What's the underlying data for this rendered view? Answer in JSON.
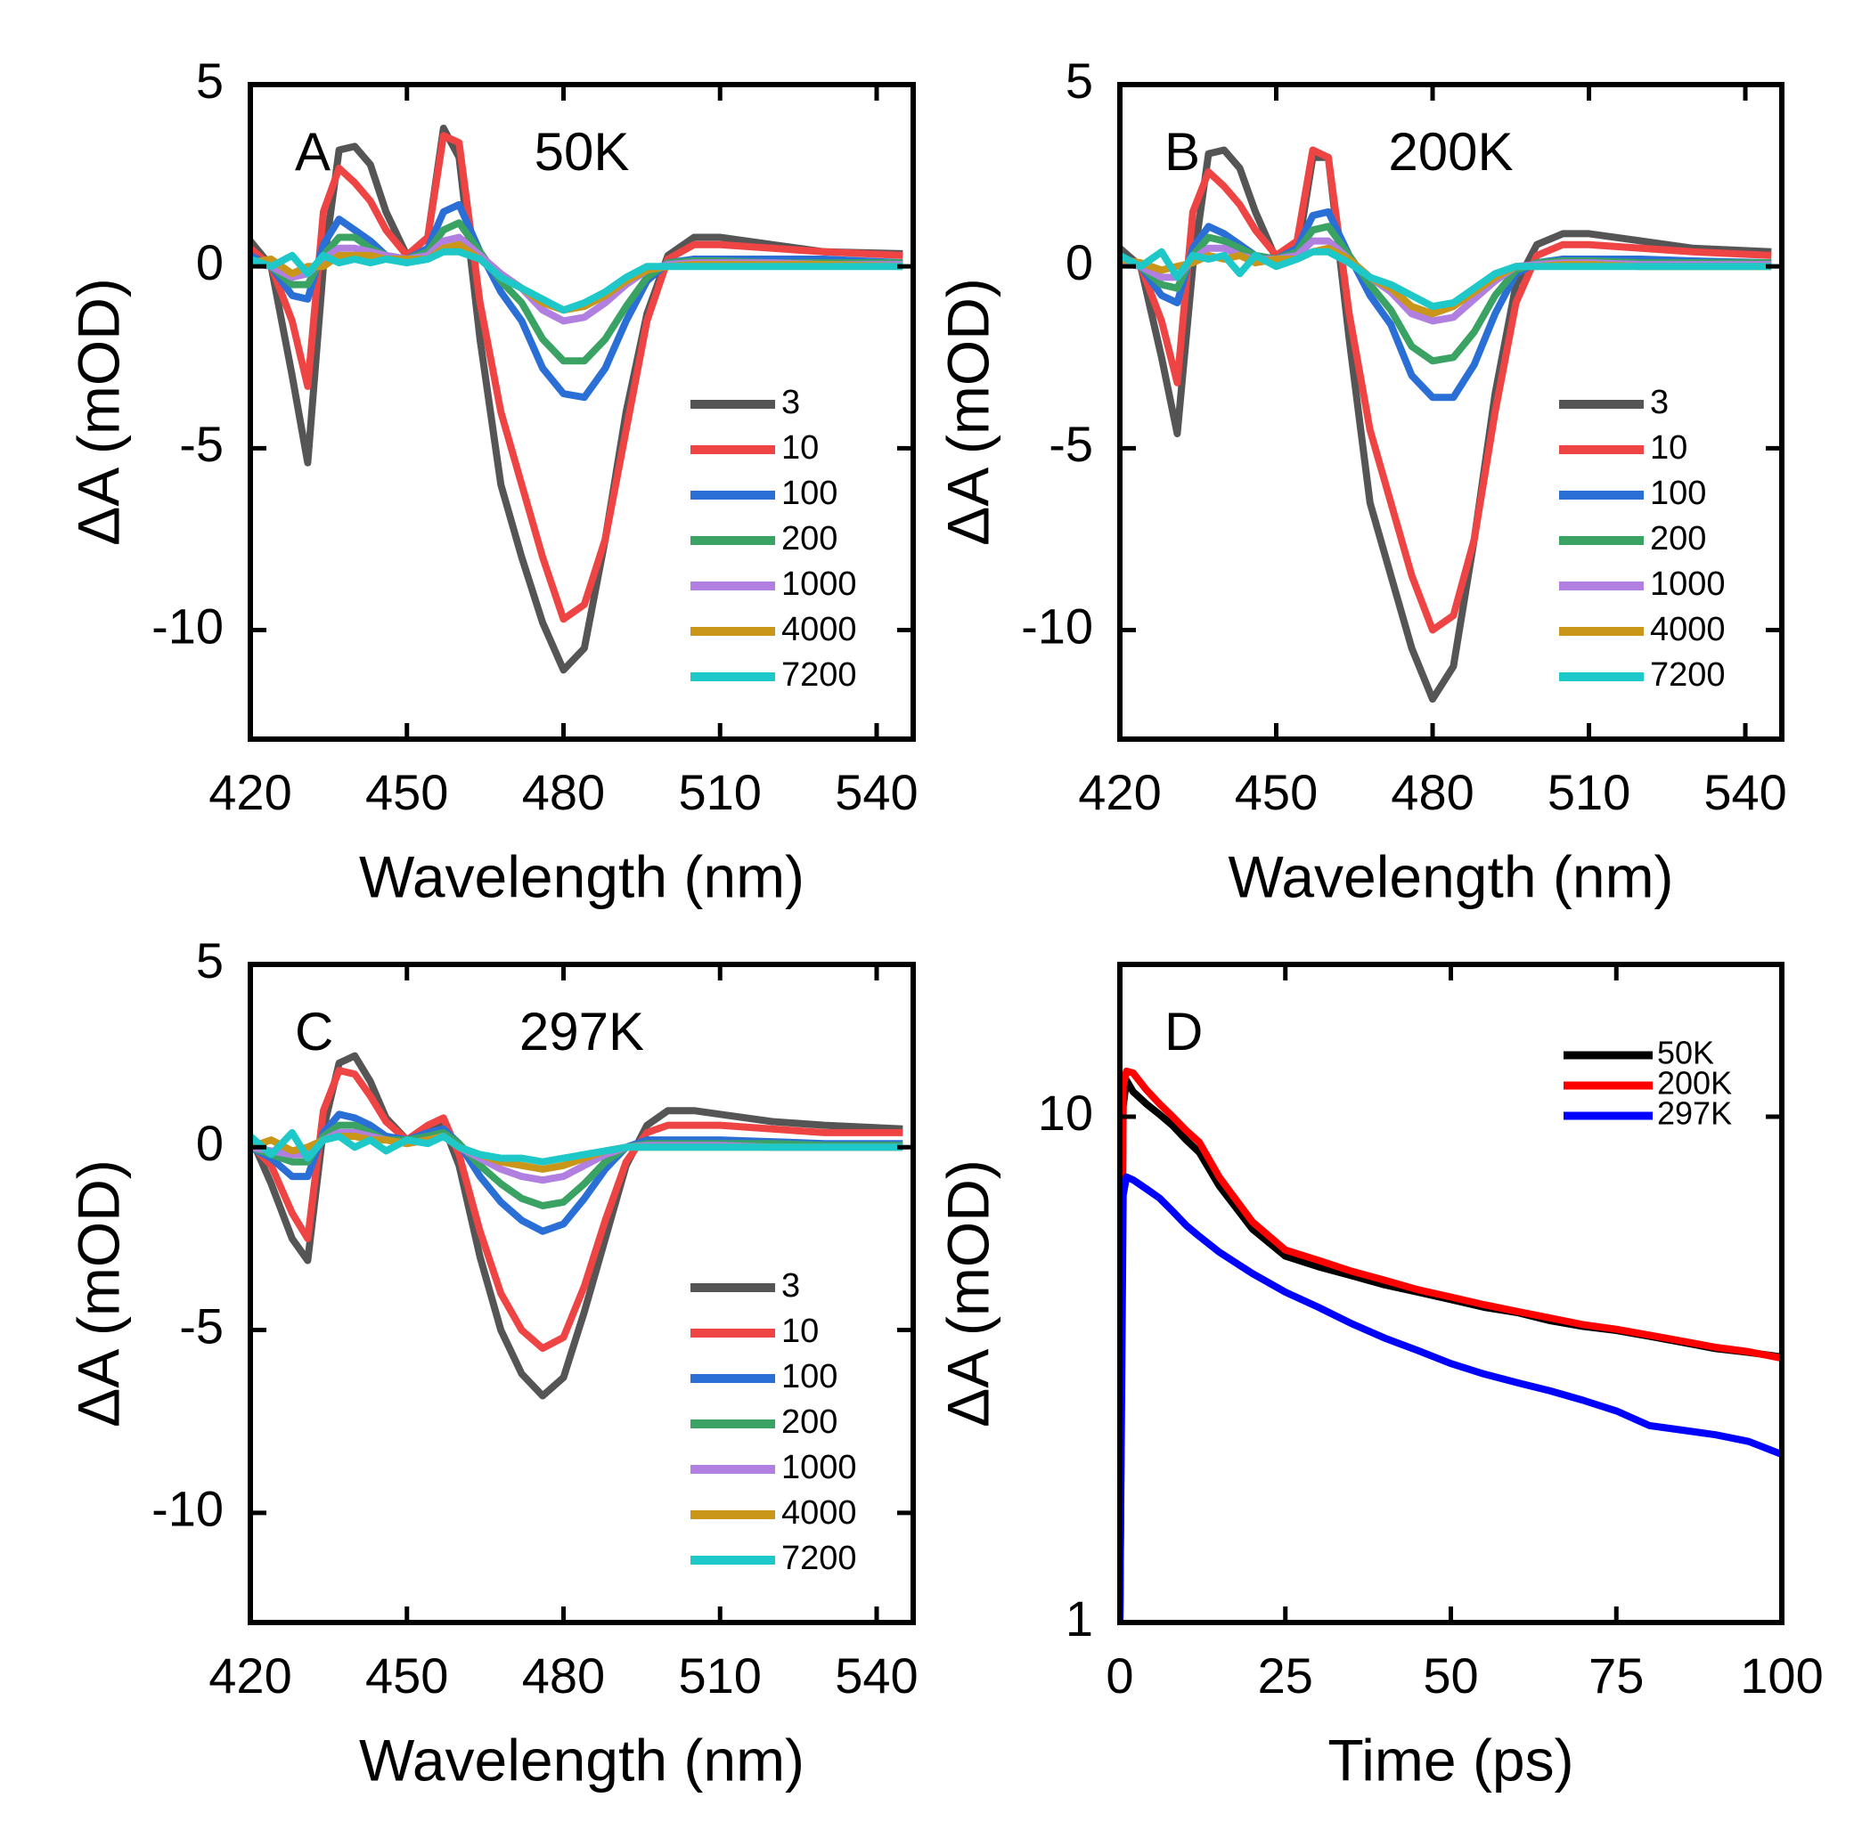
{
  "chart_data": [
    {
      "type": "line",
      "panel_label": "A",
      "annotation": "50K",
      "x_label": "Wavelength (nm)",
      "y_label": "ΔA (mOD)",
      "legend": "lower right",
      "xlim": [
        420,
        547
      ],
      "xticks": [
        420,
        450,
        480,
        510,
        540
      ],
      "ylim": [
        -13,
        5
      ],
      "yticks": [
        -10,
        -5,
        0,
        5
      ],
      "x": [
        420,
        424,
        428,
        431,
        434,
        437,
        440,
        443,
        446,
        450,
        454,
        457,
        460,
        464,
        468,
        472,
        476,
        480,
        484,
        488,
        492,
        496,
        500,
        505,
        510,
        520,
        530,
        545
      ],
      "series": [
        {
          "name": "3",
          "color": "#555555",
          "values": [
            0.7,
            0,
            -3,
            -5.4,
            0,
            3.2,
            3.3,
            2.8,
            1.5,
            0.3,
            0.8,
            3.8,
            3.0,
            -2,
            -6,
            -8,
            -9.8,
            -11.1,
            -10.5,
            -7.5,
            -4,
            -1.3,
            0.3,
            0.8,
            0.8,
            0.6,
            0.4,
            0.35
          ]
        },
        {
          "name": "10",
          "color": "#ee4444",
          "values": [
            0.5,
            0,
            -1.5,
            -3.3,
            1.5,
            2.7,
            2.3,
            1.8,
            1.0,
            0.3,
            0.8,
            3.6,
            3.4,
            -1,
            -4,
            -6,
            -8,
            -9.7,
            -9.3,
            -7.5,
            -4.5,
            -1.5,
            0.2,
            0.6,
            0.6,
            0.5,
            0.4,
            0.3
          ]
        },
        {
          "name": "100",
          "color": "#2a6fd6",
          "values": [
            0.3,
            0,
            -0.8,
            -0.9,
            0.6,
            1.3,
            1.0,
            0.7,
            0.3,
            0.2,
            0.5,
            1.5,
            1.7,
            0.4,
            -0.7,
            -1.5,
            -2.8,
            -3.5,
            -3.6,
            -2.8,
            -1.5,
            -0.4,
            0.1,
            0.2,
            0.2,
            0.2,
            0.2,
            0.1
          ]
        },
        {
          "name": "200",
          "color": "#3aa364",
          "values": [
            0.2,
            0,
            -0.5,
            -0.5,
            0.3,
            0.8,
            0.8,
            0.5,
            0.3,
            0.2,
            0.4,
            1.0,
            1.2,
            0.4,
            -0.4,
            -1.0,
            -2.0,
            -2.6,
            -2.6,
            -2.0,
            -1.1,
            -0.3,
            0.1,
            0.15,
            0.15,
            0.1,
            0.1,
            0.1
          ]
        },
        {
          "name": "1000",
          "color": "#b07fe0",
          "values": [
            0.1,
            0,
            -0.3,
            -0.2,
            0.2,
            0.5,
            0.5,
            0.4,
            0.3,
            0.2,
            0.3,
            0.7,
            0.8,
            0.3,
            -0.2,
            -0.6,
            -1.2,
            -1.5,
            -1.4,
            -1.0,
            -0.5,
            -0.1,
            0.05,
            0.1,
            0.1,
            0.1,
            0.05,
            0.05
          ]
        },
        {
          "name": "4000",
          "color": "#c9961a",
          "values": [
            0.1,
            0.2,
            -0.2,
            0,
            0,
            0.3,
            0.3,
            0.3,
            0.2,
            0.2,
            0.2,
            0.5,
            0.6,
            0.2,
            -0.3,
            -0.6,
            -1.0,
            -1.2,
            -1.1,
            -0.8,
            -0.4,
            -0.1,
            0,
            0.05,
            0.05,
            0.05,
            0.05,
            0
          ]
        },
        {
          "name": "7200",
          "color": "#1ec8c8",
          "values": [
            0.2,
            0,
            0.3,
            -0.2,
            0.3,
            0.1,
            0.2,
            0.1,
            0.2,
            0.1,
            0.2,
            0.4,
            0.4,
            0.2,
            -0.3,
            -0.6,
            -0.9,
            -1.2,
            -1.0,
            -0.7,
            -0.3,
            0,
            0,
            0,
            0,
            0,
            0,
            0
          ]
        }
      ]
    },
    {
      "type": "line",
      "panel_label": "B",
      "annotation": "200K",
      "x_label": "Wavelength (nm)",
      "y_label": "ΔA (mOD)",
      "legend": "lower right",
      "xlim": [
        420,
        547
      ],
      "xticks": [
        420,
        450,
        480,
        510,
        540
      ],
      "ylim": [
        -13,
        5
      ],
      "yticks": [
        -10,
        -5,
        0,
        5
      ],
      "x": [
        420,
        424,
        428,
        431,
        434,
        437,
        440,
        443,
        446,
        450,
        454,
        457,
        460,
        464,
        468,
        472,
        476,
        480,
        484,
        488,
        492,
        496,
        500,
        505,
        510,
        520,
        530,
        545
      ],
      "series": [
        {
          "name": "3",
          "color": "#555555",
          "values": [
            0.5,
            0,
            -2.5,
            -4.6,
            0,
            3.1,
            3.2,
            2.7,
            1.5,
            0.2,
            0.3,
            3.0,
            3.0,
            -2,
            -6.5,
            -8.5,
            -10.5,
            -11.9,
            -11,
            -7.5,
            -3.5,
            -0.5,
            0.6,
            0.9,
            0.9,
            0.7,
            0.5,
            0.4
          ]
        },
        {
          "name": "10",
          "color": "#ee4444",
          "values": [
            0.3,
            0,
            -1.5,
            -3.2,
            1.5,
            2.6,
            2.2,
            1.7,
            1.0,
            0.3,
            0.7,
            3.2,
            3.0,
            -1.3,
            -4.5,
            -6.5,
            -8.5,
            -10,
            -9.6,
            -7.5,
            -4,
            -1,
            0.3,
            0.6,
            0.6,
            0.5,
            0.4,
            0.3
          ]
        },
        {
          "name": "100",
          "color": "#2a6fd6",
          "values": [
            0.3,
            0,
            -0.8,
            -1.0,
            0.5,
            1.1,
            0.9,
            0.6,
            0.3,
            0.2,
            0.5,
            1.4,
            1.5,
            0.3,
            -0.8,
            -1.6,
            -3.0,
            -3.6,
            -3.6,
            -2.7,
            -1.3,
            -0.2,
            0.1,
            0.2,
            0.2,
            0.2,
            0.15,
            0.1
          ]
        },
        {
          "name": "200",
          "color": "#3aa364",
          "values": [
            0.2,
            0,
            -0.5,
            -0.6,
            0.3,
            0.8,
            0.7,
            0.5,
            0.3,
            0.2,
            0.4,
            1.0,
            1.1,
            0.3,
            -0.5,
            -1.2,
            -2.2,
            -2.6,
            -2.5,
            -1.8,
            -0.8,
            -0.1,
            0.1,
            0.15,
            0.15,
            0.1,
            0.1,
            0.1
          ]
        },
        {
          "name": "1000",
          "color": "#b07fe0",
          "values": [
            0.1,
            0,
            -0.3,
            -0.3,
            0.2,
            0.5,
            0.5,
            0.3,
            0.2,
            0.2,
            0.3,
            0.7,
            0.7,
            0.2,
            -0.3,
            -0.7,
            -1.3,
            -1.5,
            -1.4,
            -0.9,
            -0.4,
            0,
            0.05,
            0.1,
            0.1,
            0.05,
            0.05,
            0.05
          ]
        },
        {
          "name": "4000",
          "color": "#c9961a",
          "values": [
            0.2,
            0.1,
            -0.1,
            0,
            0.1,
            0.3,
            0.2,
            0.3,
            0.1,
            0.2,
            0.2,
            0.4,
            0.5,
            0.2,
            -0.3,
            -0.6,
            -1.1,
            -1.3,
            -1.1,
            -0.7,
            -0.3,
            0,
            0,
            0.05,
            0.05,
            0,
            0,
            0
          ]
        },
        {
          "name": "7200",
          "color": "#1ec8c8",
          "values": [
            0.3,
            0,
            0.4,
            -0.3,
            0.3,
            0.2,
            0.3,
            -0.2,
            0.3,
            0,
            0.2,
            0.4,
            0.4,
            0.1,
            -0.3,
            -0.5,
            -0.8,
            -1.1,
            -1.0,
            -0.6,
            -0.2,
            0,
            0,
            0,
            0,
            0,
            0,
            0
          ]
        }
      ]
    },
    {
      "type": "line",
      "panel_label": "C",
      "annotation": "297K",
      "x_label": "Wavelength (nm)",
      "y_label": "ΔA (mOD)",
      "legend": "lower right",
      "xlim": [
        420,
        547
      ],
      "xticks": [
        420,
        450,
        480,
        510,
        540
      ],
      "ylim": [
        -13,
        5
      ],
      "yticks": [
        -10,
        -5,
        0,
        5
      ],
      "x": [
        420,
        424,
        428,
        431,
        434,
        437,
        440,
        443,
        446,
        450,
        454,
        457,
        460,
        464,
        468,
        472,
        476,
        480,
        484,
        488,
        492,
        496,
        500,
        505,
        510,
        520,
        530,
        545
      ],
      "series": [
        {
          "name": "3",
          "color": "#555555",
          "values": [
            0.3,
            -1,
            -2.5,
            -3.1,
            0.5,
            2.3,
            2.5,
            1.8,
            0.8,
            0.2,
            0.5,
            0.6,
            -0.5,
            -3,
            -5,
            -6.2,
            -6.8,
            -6.3,
            -4.5,
            -2.5,
            -0.5,
            0.6,
            1.0,
            1.0,
            0.9,
            0.7,
            0.6,
            0.5
          ]
        },
        {
          "name": "10",
          "color": "#ee4444",
          "values": [
            0.1,
            -0.5,
            -1.8,
            -2.5,
            1.0,
            2.1,
            2.0,
            1.4,
            0.7,
            0.2,
            0.6,
            0.8,
            -0.2,
            -2.3,
            -4,
            -5,
            -5.5,
            -5.2,
            -3.8,
            -2.0,
            -0.4,
            0.4,
            0.6,
            0.6,
            0.6,
            0.5,
            0.4,
            0.4
          ]
        },
        {
          "name": "100",
          "color": "#2a6fd6",
          "values": [
            0,
            -0.3,
            -0.8,
            -0.8,
            0.4,
            0.9,
            0.8,
            0.6,
            0.3,
            0.2,
            0.4,
            0.5,
            0.1,
            -0.8,
            -1.5,
            -2.0,
            -2.3,
            -2.1,
            -1.4,
            -0.6,
            0,
            0.2,
            0.2,
            0.2,
            0.2,
            0.15,
            0.1,
            0.1
          ]
        },
        {
          "name": "200",
          "color": "#3aa364",
          "values": [
            0,
            -0.2,
            -0.4,
            -0.4,
            0.3,
            0.6,
            0.6,
            0.4,
            0.2,
            0.2,
            0.3,
            0.4,
            0.1,
            -0.5,
            -1.0,
            -1.4,
            -1.6,
            -1.5,
            -1.0,
            -0.4,
            0,
            0.1,
            0.1,
            0.1,
            0.1,
            0.1,
            0.05,
            0.05
          ]
        },
        {
          "name": "1000",
          "color": "#b07fe0",
          "values": [
            0,
            -0.1,
            -0.2,
            -0.2,
            0.2,
            0.4,
            0.4,
            0.3,
            0.2,
            0.1,
            0.2,
            0.3,
            0,
            -0.3,
            -0.6,
            -0.8,
            -0.9,
            -0.8,
            -0.5,
            -0.2,
            0,
            0.05,
            0.05,
            0.05,
            0.05,
            0,
            0,
            0
          ]
        },
        {
          "name": "4000",
          "color": "#c9961a",
          "values": [
            0,
            0.2,
            -0.1,
            0,
            0.2,
            0.3,
            0.3,
            0.2,
            0.2,
            0.1,
            0.2,
            0.3,
            0,
            -0.2,
            -0.4,
            -0.5,
            -0.6,
            -0.5,
            -0.3,
            -0.1,
            0,
            0,
            0,
            0,
            0,
            0,
            0,
            0
          ]
        },
        {
          "name": "7200",
          "color": "#1ec8c8",
          "values": [
            0.3,
            -0.2,
            0.4,
            -0.3,
            0.2,
            0.3,
            0,
            0.2,
            -0.1,
            0.2,
            0.1,
            0.3,
            0,
            -0.2,
            -0.3,
            -0.3,
            -0.4,
            -0.3,
            -0.2,
            -0.1,
            0,
            0,
            0,
            0,
            0,
            0,
            0,
            0
          ]
        }
      ]
    },
    {
      "type": "line",
      "panel_label": "D",
      "x_label": "Time (ps)",
      "y_label": "ΔA (mOD)",
      "legend": "upper right",
      "yscale": "log",
      "xlim": [
        0,
        100
      ],
      "xticks": [
        0,
        25,
        50,
        75,
        100
      ],
      "ylim": [
        1,
        20
      ],
      "yticks": [
        1,
        10
      ],
      "x": [
        0,
        0.5,
        1,
        2,
        4,
        6,
        8,
        10,
        12,
        15,
        20,
        25,
        30,
        35,
        40,
        45,
        50,
        55,
        60,
        65,
        70,
        75,
        80,
        85,
        90,
        95,
        100
      ],
      "series": [
        {
          "name": "50K",
          "color": "#000000",
          "values": [
            1,
            10.5,
            11.8,
            11.2,
            10.6,
            10.1,
            9.6,
            9.0,
            8.5,
            7.3,
            6.0,
            5.3,
            5.05,
            4.85,
            4.65,
            4.5,
            4.35,
            4.2,
            4.1,
            3.95,
            3.85,
            3.78,
            3.68,
            3.58,
            3.48,
            3.42,
            3.35
          ]
        },
        {
          "name": "200K",
          "color": "#ff0000",
          "values": [
            1,
            11.5,
            12.3,
            12.2,
            11.3,
            10.6,
            10.0,
            9.4,
            8.9,
            7.6,
            6.2,
            5.45,
            5.2,
            4.95,
            4.75,
            4.55,
            4.4,
            4.25,
            4.12,
            4.0,
            3.88,
            3.8,
            3.7,
            3.6,
            3.5,
            3.43,
            3.33
          ]
        },
        {
          "name": "297K",
          "color": "#0000ff",
          "values": [
            1,
            7.0,
            7.6,
            7.5,
            7.2,
            6.9,
            6.5,
            6.1,
            5.8,
            5.4,
            4.9,
            4.5,
            4.2,
            3.9,
            3.65,
            3.45,
            3.25,
            3.1,
            2.98,
            2.87,
            2.75,
            2.62,
            2.45,
            2.4,
            2.35,
            2.28,
            2.15
          ]
        }
      ]
    }
  ]
}
